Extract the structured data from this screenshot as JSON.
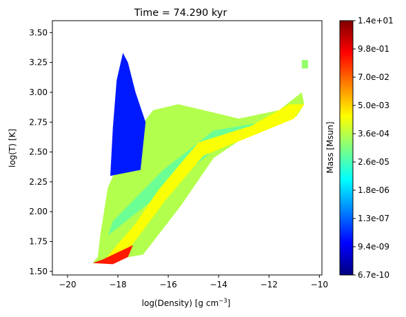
{
  "chart_data": {
    "type": "heatmap",
    "title": "Time = 74.290 kyr",
    "xlabel": "log(Density) [g cm",
    "xlabel_sup": "−3",
    "xlabel_close": "]",
    "ylabel": "log(T) [K]",
    "xlim": [
      -20.6,
      -9.9
    ],
    "ylim": [
      1.47,
      3.6
    ],
    "x_ticks": [
      {
        "value": -20,
        "label": "−20"
      },
      {
        "value": -18,
        "label": "−18"
      },
      {
        "value": -16,
        "label": "−16"
      },
      {
        "value": -14,
        "label": "−14"
      },
      {
        "value": -12,
        "label": "−12"
      },
      {
        "value": -10,
        "label": "−10"
      }
    ],
    "y_ticks": [
      {
        "value": 1.5,
        "label": "1.50"
      },
      {
        "value": 1.75,
        "label": "1.75"
      },
      {
        "value": 2.0,
        "label": "2.00"
      },
      {
        "value": 2.25,
        "label": "2.25"
      },
      {
        "value": 2.5,
        "label": "2.50"
      },
      {
        "value": 2.75,
        "label": "2.75"
      },
      {
        "value": 3.0,
        "label": "3.00"
      },
      {
        "value": 3.25,
        "label": "3.25"
      },
      {
        "value": 3.5,
        "label": "3.50"
      }
    ],
    "colormap": "jet",
    "colorbar": {
      "label": "Mass [Msun]",
      "ticks": [
        "6.7e-10",
        "9.4e-09",
        "1.3e-07",
        "1.8e-06",
        "2.6e-05",
        "3.6e-04",
        "5.0e-03",
        "7.0e-02",
        "9.8e-01",
        "1.4e+01"
      ],
      "colors": [
        "#00007f",
        "#0000ff",
        "#0080ff",
        "#00ffff",
        "#80ff80",
        "#ffff00",
        "#ff8000",
        "#ff0000",
        "#7f0000"
      ]
    },
    "regions": [
      {
        "name": "cold-dense-branch",
        "level": 0.55,
        "polygon": [
          [
            -19.0,
            1.57
          ],
          [
            -17.0,
            1.64
          ],
          [
            -15.5,
            2.05
          ],
          [
            -14.2,
            2.45
          ],
          [
            -13.0,
            2.62
          ],
          [
            -11.8,
            2.75
          ],
          [
            -10.9,
            2.8
          ],
          [
            -10.6,
            2.9
          ],
          [
            -10.7,
            3.0
          ],
          [
            -11.6,
            2.85
          ],
          [
            -13.2,
            2.78
          ],
          [
            -14.6,
            2.85
          ],
          [
            -15.6,
            2.9
          ],
          [
            -16.6,
            2.85
          ],
          [
            -17.6,
            2.58
          ],
          [
            -18.4,
            2.2
          ],
          [
            -18.7,
            1.8
          ],
          [
            -18.8,
            1.62
          ]
        ]
      },
      {
        "name": "hot-spike",
        "level": 0.15,
        "polygon": [
          [
            -18.3,
            2.3
          ],
          [
            -17.1,
            2.35
          ],
          [
            -16.9,
            2.75
          ],
          [
            -17.3,
            3.0
          ],
          [
            -17.6,
            3.25
          ],
          [
            -17.8,
            3.33
          ],
          [
            -18.05,
            3.1
          ],
          [
            -18.2,
            2.7
          ]
        ]
      },
      {
        "name": "midline-band",
        "level": 0.48,
        "polygon": [
          [
            -18.4,
            1.8
          ],
          [
            -16.0,
            2.2
          ],
          [
            -14.0,
            2.55
          ],
          [
            -12.0,
            2.7
          ],
          [
            -12.0,
            2.76
          ],
          [
            -14.2,
            2.68
          ],
          [
            -16.2,
            2.35
          ],
          [
            -18.2,
            1.92
          ]
        ]
      },
      {
        "name": "dense-ridge",
        "level": 0.62,
        "polygon": [
          [
            -18.6,
            1.58
          ],
          [
            -17.8,
            1.62
          ],
          [
            -16.8,
            1.9
          ],
          [
            -16.1,
            2.1
          ],
          [
            -14.6,
            2.47
          ],
          [
            -12.5,
            2.65
          ],
          [
            -11.0,
            2.78
          ],
          [
            -10.6,
            2.9
          ],
          [
            -11.2,
            2.9
          ],
          [
            -12.7,
            2.72
          ],
          [
            -14.8,
            2.58
          ],
          [
            -16.4,
            2.18
          ],
          [
            -17.3,
            1.9
          ],
          [
            -18.2,
            1.68
          ]
        ]
      },
      {
        "name": "dense-core",
        "level": 0.85,
        "polygon": [
          [
            -19.0,
            1.57
          ],
          [
            -18.2,
            1.56
          ],
          [
            -17.6,
            1.62
          ],
          [
            -17.4,
            1.72
          ],
          [
            -17.9,
            1.67
          ],
          [
            -18.6,
            1.6
          ]
        ]
      },
      {
        "name": "isolated-knot",
        "level": 0.52,
        "polygon": [
          [
            -10.7,
            3.2
          ],
          [
            -10.45,
            3.2
          ],
          [
            -10.45,
            3.27
          ],
          [
            -10.7,
            3.27
          ]
        ]
      }
    ]
  }
}
